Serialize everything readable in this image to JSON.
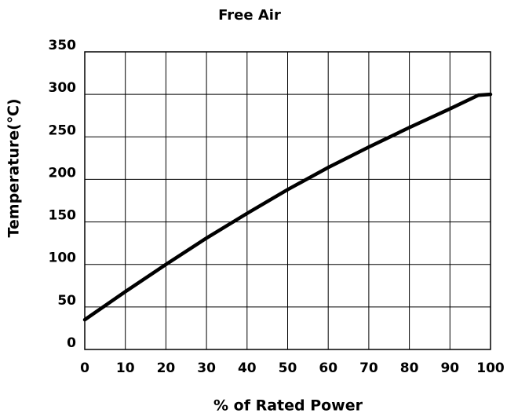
{
  "chart_data": {
    "type": "line",
    "title": "Free Air",
    "xlabel": "% of Rated Power",
    "ylabel": "Temperature(℃)",
    "x": [
      0,
      10,
      20,
      30,
      40,
      50,
      60,
      70,
      80,
      90,
      97,
      100
    ],
    "series": [
      {
        "name": "Free Air",
        "color": "#000000",
        "values": [
          35,
          68,
          100,
          131,
          160,
          188,
          214,
          238,
          261,
          283,
          299,
          300
        ]
      }
    ],
    "xlim": [
      0,
      100
    ],
    "xticks": [
      0,
      10,
      20,
      30,
      40,
      50,
      60,
      70,
      80,
      90,
      100
    ],
    "ylim": [
      0,
      350
    ],
    "yticks": [
      0,
      50,
      100,
      150,
      200,
      250,
      300,
      350
    ],
    "grid": true
  }
}
